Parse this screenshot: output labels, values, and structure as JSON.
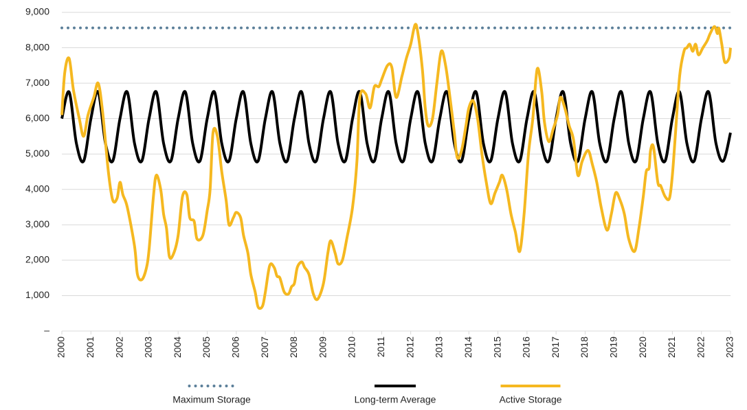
{
  "chart_data": {
    "type": "line",
    "xlim": [
      2000,
      2023
    ],
    "xticks": [
      2000,
      2001,
      2002,
      2003,
      2004,
      2005,
      2006,
      2007,
      2008,
      2009,
      2010,
      2011,
      2012,
      2013,
      2014,
      2015,
      2016,
      2017,
      2018,
      2019,
      2020,
      2021,
      2022,
      2023
    ],
    "ylim": [
      0,
      9000
    ],
    "yticks": [
      {
        "value": 0,
        "label": "–"
      },
      {
        "value": 1000,
        "label": "1,000"
      },
      {
        "value": 2000,
        "label": "2,000"
      },
      {
        "value": 3000,
        "label": "3,000"
      },
      {
        "value": 4000,
        "label": "4,000"
      },
      {
        "value": 5000,
        "label": "5,000"
      },
      {
        "value": 6000,
        "label": "6,000"
      },
      {
        "value": 7000,
        "label": "7,000"
      },
      {
        "value": 8000,
        "label": "8,000"
      },
      {
        "value": 9000,
        "label": "9,000"
      }
    ],
    "grid": true,
    "legend": "bottom",
    "series": [
      {
        "name": "Maximum Storage",
        "color": "#5b7f99",
        "style": "dotted",
        "x": [
          2000,
          2023
        ],
        "values": [
          8560,
          8560
        ]
      },
      {
        "name": "Long-term Average",
        "color": "#000000",
        "style": "solid",
        "x": [
          2000,
          2000.25,
          2000.5,
          2000.75,
          2001,
          2001.25,
          2001.5,
          2001.75,
          2002,
          2002.25,
          2002.5,
          2002.75,
          2003,
          2003.25,
          2003.5,
          2003.75,
          2004,
          2004.25,
          2004.5,
          2004.75,
          2005,
          2005.25,
          2005.5,
          2005.75,
          2006,
          2006.25,
          2006.5,
          2006.75,
          2007,
          2007.25,
          2007.5,
          2007.75,
          2008,
          2008.25,
          2008.5,
          2008.75,
          2009,
          2009.25,
          2009.5,
          2009.75,
          2010,
          2010.25,
          2010.5,
          2010.75,
          2011,
          2011.25,
          2011.5,
          2011.75,
          2012,
          2012.25,
          2012.5,
          2012.75,
          2013,
          2013.25,
          2013.5,
          2013.75,
          2014,
          2014.25,
          2014.5,
          2014.75,
          2015,
          2015.25,
          2015.5,
          2015.75,
          2016,
          2016.25,
          2016.5,
          2016.75,
          2017,
          2017.25,
          2017.5,
          2017.75,
          2018,
          2018.25,
          2018.5,
          2018.75,
          2019,
          2019.25,
          2019.5,
          2019.75,
          2020,
          2020.25,
          2020.5,
          2020.75,
          2021,
          2021.25,
          2021.5,
          2021.75,
          2022,
          2022.25,
          2022.5,
          2022.75,
          2023
        ],
        "values": [
          6000,
          6750,
          5300,
          4800,
          6000,
          6750,
          5300,
          4800,
          6000,
          6750,
          5300,
          4800,
          6000,
          6750,
          5300,
          4800,
          6000,
          6750,
          5300,
          4800,
          6000,
          6750,
          5300,
          4800,
          6000,
          6750,
          5300,
          4800,
          6000,
          6750,
          5300,
          4800,
          6000,
          6750,
          5300,
          4800,
          6000,
          6750,
          5300,
          4800,
          6000,
          6750,
          5300,
          4800,
          6000,
          6750,
          5300,
          4800,
          6000,
          6750,
          5300,
          4800,
          6000,
          6750,
          5300,
          4800,
          6000,
          6750,
          5300,
          4800,
          6000,
          6750,
          5300,
          4800,
          6000,
          6750,
          5300,
          4800,
          6000,
          6750,
          5300,
          4800,
          6000,
          6750,
          5300,
          4800,
          6000,
          6750,
          5300,
          4800,
          6000,
          6750,
          5300,
          4800,
          6000,
          6750,
          5300,
          4800,
          6000,
          6750,
          5300,
          4800,
          5600
        ]
      },
      {
        "name": "Active Storage",
        "color": "#f5b820",
        "style": "solid",
        "x": [
          2000,
          2000.1,
          2000.25,
          2000.4,
          2000.6,
          2000.75,
          2000.9,
          2001.1,
          2001.25,
          2001.4,
          2001.6,
          2001.75,
          2001.9,
          2002,
          2002.1,
          2002.25,
          2002.5,
          2002.6,
          2002.75,
          2002.9,
          2003,
          2003.15,
          2003.25,
          2003.4,
          2003.5,
          2003.6,
          2003.7,
          2003.85,
          2004,
          2004.15,
          2004.3,
          2004.4,
          2004.55,
          2004.65,
          2004.85,
          2005,
          2005.1,
          2005.2,
          2005.35,
          2005.5,
          2005.65,
          2005.75,
          2005.9,
          2006,
          2006.15,
          2006.25,
          2006.4,
          2006.5,
          2006.65,
          2006.75,
          2006.9,
          2007,
          2007.15,
          2007.3,
          2007.4,
          2007.5,
          2007.65,
          2007.8,
          2007.9,
          2008,
          2008.1,
          2008.25,
          2008.35,
          2008.5,
          2008.65,
          2008.8,
          2009,
          2009.15,
          2009.25,
          2009.4,
          2009.5,
          2009.65,
          2009.8,
          2010,
          2010.15,
          2010.25,
          2010.45,
          2010.6,
          2010.75,
          2010.9,
          2011,
          2011.2,
          2011.35,
          2011.5,
          2011.7,
          2011.85,
          2012,
          2012.15,
          2012.25,
          2012.4,
          2012.5,
          2012.6,
          2012.75,
          2012.9,
          2013.05,
          2013.2,
          2013.35,
          2013.5,
          2013.6,
          2013.75,
          2013.9,
          2014,
          2014.15,
          2014.3,
          2014.45,
          2014.6,
          2014.75,
          2014.9,
          2015.05,
          2015.15,
          2015.3,
          2015.45,
          2015.6,
          2015.75,
          2015.9,
          2016.05,
          2016.2,
          2016.35,
          2016.5,
          2016.6,
          2016.75,
          2016.9,
          2017.05,
          2017.15,
          2017.3,
          2017.45,
          2017.6,
          2017.75,
          2017.9,
          2018.1,
          2018.25,
          2018.4,
          2018.55,
          2018.75,
          2018.9,
          2019.05,
          2019.2,
          2019.35,
          2019.5,
          2019.7,
          2019.85,
          2020,
          2020.1,
          2020.2,
          2020.25,
          2020.35,
          2020.5,
          2020.6,
          2020.75,
          2020.9,
          2021,
          2021.1,
          2021.25,
          2021.4,
          2021.5,
          2021.6,
          2021.7,
          2021.8,
          2021.9,
          2022.05,
          2022.2,
          2022.3,
          2022.45,
          2022.55,
          2022.6,
          2022.7,
          2022.8,
          2022.95,
          2023
        ],
        "values": [
          6100,
          7300,
          7700,
          6800,
          6000,
          5500,
          6100,
          6600,
          7000,
          6200,
          4500,
          3700,
          3750,
          4200,
          3850,
          3500,
          2400,
          1600,
          1450,
          1750,
          2300,
          3800,
          4400,
          4000,
          3300,
          2900,
          2100,
          2200,
          2700,
          3800,
          3850,
          3200,
          3100,
          2600,
          2700,
          3400,
          4000,
          5600,
          5500,
          4500,
          3700,
          3000,
          3200,
          3350,
          3200,
          2700,
          2200,
          1600,
          1100,
          680,
          700,
          1100,
          1850,
          1800,
          1550,
          1500,
          1100,
          1050,
          1250,
          1350,
          1800,
          1950,
          1800,
          1600,
          1050,
          900,
          1350,
          2200,
          2550,
          2200,
          1900,
          2000,
          2600,
          3500,
          4800,
          6600,
          6700,
          6300,
          6900,
          6900,
          7100,
          7500,
          7450,
          6600,
          7200,
          7700,
          8100,
          8650,
          8400,
          7400,
          6300,
          5800,
          6000,
          7000,
          7900,
          7500,
          6600,
          5600,
          4900,
          5100,
          5800,
          6300,
          6500,
          6000,
          5000,
          4200,
          3600,
          3900,
          4200,
          4400,
          4000,
          3300,
          2800,
          2250,
          3300,
          5000,
          6000,
          7400,
          6800,
          5900,
          5350,
          5700,
          6100,
          6600,
          6300,
          5800,
          5400,
          4400,
          4800,
          5100,
          4700,
          4200,
          3500,
          2850,
          3300,
          3900,
          3700,
          3300,
          2600,
          2250,
          2900,
          3800,
          4500,
          4600,
          5100,
          5200,
          4200,
          4100,
          3800,
          3750,
          4400,
          5500,
          7200,
          7900,
          8000,
          8100,
          7900,
          8100,
          7800,
          8000,
          8200,
          8400,
          8600,
          8400,
          8550,
          8100,
          7600,
          7700,
          8000
        ]
      }
    ]
  }
}
